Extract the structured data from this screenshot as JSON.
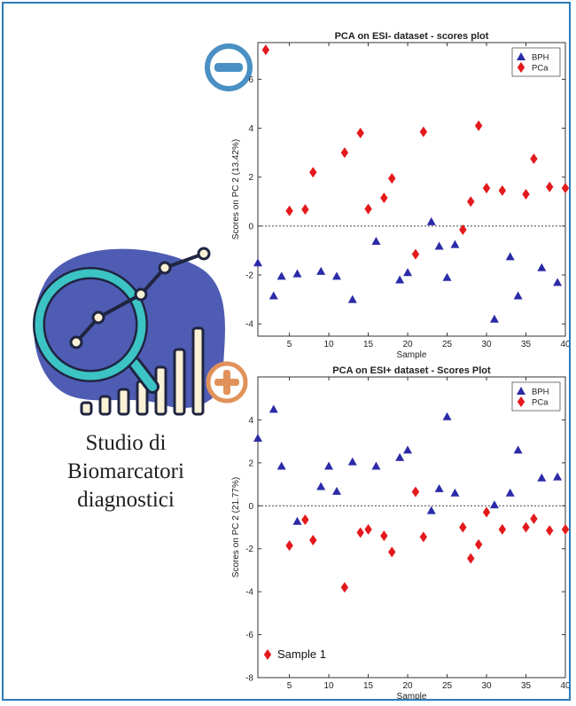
{
  "caption": {
    "line1": "Studio di",
    "line2": "Biomarcatori",
    "line3": "diagnostici"
  },
  "icons": {
    "minus_badge": "minus-circle-icon",
    "plus_badge": "plus-circle-icon",
    "illustration": "magnifier-chart-icon"
  },
  "colors": {
    "minus_badge": "#4a90c4",
    "plus_badge": "#e0925a",
    "blob": "#4f5cb4",
    "magnifier": "#3cc3c4",
    "bars": "#fbf1d6",
    "bph": "#2b2ba8",
    "pca": "#e3191c"
  },
  "chart_data": [
    {
      "type": "scatter",
      "title": "PCA on ESI- dataset - scores plot",
      "xlabel": "Sample",
      "ylabel": "Scores on PC 2 (13.42%)",
      "xlim": [
        1,
        40
      ],
      "ylim": [
        -4.5,
        7.5
      ],
      "xticks": [
        5,
        10,
        15,
        20,
        25,
        30,
        35,
        40
      ],
      "yticks": [
        -4,
        -2,
        0,
        2,
        4,
        6
      ],
      "zero_line": true,
      "legend": "top-right",
      "series": [
        {
          "name": "BPH",
          "marker": "triangle",
          "color": "#2b2ba8",
          "points": [
            [
              1,
              -1.5
            ],
            [
              3,
              -2.85
            ],
            [
              4,
              -2.05
            ],
            [
              6,
              -1.95
            ],
            [
              9,
              -1.85
            ],
            [
              11,
              -2.05
            ],
            [
              13,
              -3.0
            ],
            [
              16,
              -0.62
            ],
            [
              19,
              -2.2
            ],
            [
              20,
              -1.9
            ],
            [
              23,
              0.18
            ],
            [
              24,
              -0.82
            ],
            [
              25,
              -2.1
            ],
            [
              26,
              -0.75
            ],
            [
              31,
              -3.8
            ],
            [
              33,
              -1.25
            ],
            [
              34,
              -2.85
            ],
            [
              37,
              -1.7
            ],
            [
              39,
              -2.3
            ]
          ]
        },
        {
          "name": "PCa",
          "marker": "diamond",
          "color": "#e3191c",
          "points": [
            [
              2,
              7.2
            ],
            [
              5,
              0.62
            ],
            [
              7,
              0.68
            ],
            [
              8,
              2.2
            ],
            [
              12,
              3.0
            ],
            [
              14,
              3.8
            ],
            [
              15,
              0.7
            ],
            [
              17,
              1.15
            ],
            [
              18,
              1.95
            ],
            [
              21,
              -1.15
            ],
            [
              22,
              3.85
            ],
            [
              27,
              -0.15
            ],
            [
              28,
              1.0
            ],
            [
              29,
              4.1
            ],
            [
              30,
              1.55
            ],
            [
              32,
              1.45
            ],
            [
              35,
              1.3
            ],
            [
              36,
              2.75
            ],
            [
              38,
              1.6
            ],
            [
              40,
              1.55
            ]
          ]
        }
      ]
    },
    {
      "type": "scatter",
      "title": "PCA on ESI+ dataset - Scores Plot",
      "xlabel": "Sample",
      "ylabel": "Scores on PC 2 (21.77%)",
      "xlim": [
        1,
        40
      ],
      "ylim": [
        -8,
        6
      ],
      "xticks": [
        5,
        10,
        15,
        20,
        25,
        30,
        35,
        40
      ],
      "yticks": [
        -8,
        -6,
        -4,
        -2,
        0,
        2,
        4
      ],
      "zero_line": true,
      "legend": "top-right",
      "annotation": "Sample 1",
      "series": [
        {
          "name": "BPH",
          "marker": "triangle",
          "color": "#2b2ba8",
          "points": [
            [
              1,
              3.15
            ],
            [
              3,
              4.5
            ],
            [
              4,
              1.85
            ],
            [
              6,
              -0.72
            ],
            [
              9,
              0.9
            ],
            [
              10,
              1.85
            ],
            [
              11,
              0.68
            ],
            [
              13,
              2.05
            ],
            [
              16,
              1.85
            ],
            [
              19,
              2.25
            ],
            [
              20,
              2.6
            ],
            [
              23,
              -0.22
            ],
            [
              24,
              0.8
            ],
            [
              25,
              4.15
            ],
            [
              26,
              0.6
            ],
            [
              31,
              0.05
            ],
            [
              33,
              0.6
            ],
            [
              34,
              2.6
            ],
            [
              37,
              1.3
            ],
            [
              39,
              1.35
            ]
          ]
        },
        {
          "name": "PCa",
          "marker": "diamond",
          "color": "#e3191c",
          "points": [
            [
              5,
              -1.85
            ],
            [
              7,
              -0.65
            ],
            [
              8,
              -1.6
            ],
            [
              12,
              -3.8
            ],
            [
              14,
              -1.25
            ],
            [
              15,
              -1.1
            ],
            [
              17,
              -1.4
            ],
            [
              18,
              -2.15
            ],
            [
              21,
              0.65
            ],
            [
              22,
              -1.45
            ],
            [
              27,
              -1.0
            ],
            [
              28,
              -2.45
            ],
            [
              29,
              -1.8
            ],
            [
              30,
              -0.3
            ],
            [
              32,
              -1.1
            ],
            [
              35,
              -1.0
            ],
            [
              36,
              -0.6
            ],
            [
              38,
              -1.15
            ],
            [
              40,
              -1.1
            ]
          ]
        }
      ]
    }
  ]
}
